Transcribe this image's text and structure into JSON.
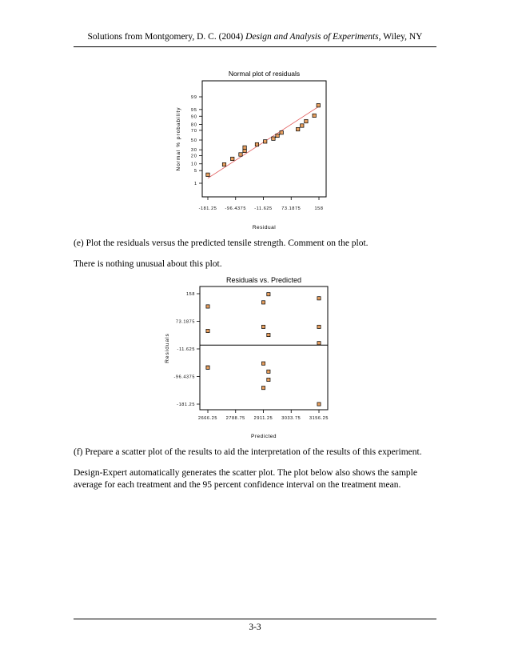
{
  "header": {
    "prefix": "Solutions from Montgomery, D. C. (2004) ",
    "book_title": "Design and Analysis of Experiments",
    "suffix": ", Wiley, NY"
  },
  "footer": {
    "page": "3-3"
  },
  "paragraphs": {
    "e_question": "(e)   Plot the residuals versus the predicted tensile strength.  Comment on the plot.",
    "e_answer": "There is nothing unusual about this plot.",
    "f_question": "(f)   Prepare a scatter plot of the results to aid the interpretation of the results of this experiment.",
    "f_answer": "Design-Expert automatically generates the scatter plot.  The plot below also shows the sample average for each treatment and the 95 percent confidence interval on the treatment mean."
  },
  "colors": {
    "marker_fill": "#e8a060",
    "fit_line": "#e05050"
  },
  "chart_data": [
    {
      "type": "scatter",
      "title": "Normal plot of residuals",
      "xlabel": "Residual",
      "ylabel": "Normal % probability",
      "x_ticks": [
        "-181.25",
        "-96.4375",
        "-11.625",
        "73.1875",
        "158"
      ],
      "x_tick_values": [
        -181.25,
        -96.4375,
        -11.625,
        73.1875,
        158
      ],
      "xlim": [
        -181.25,
        158
      ],
      "y_ticks": [
        "1",
        "5",
        "10",
        "20",
        "30",
        "50",
        "70",
        "80",
        "90",
        "95",
        "99"
      ],
      "y_tick_values": [
        1,
        5,
        10,
        20,
        30,
        50,
        70,
        80,
        90,
        95,
        99
      ],
      "ylim": [
        1,
        99
      ],
      "y_scale": "normal-probability",
      "fit_line": {
        "x": [
          -181.25,
          158
        ],
        "y": [
          2.0,
          96.5
        ]
      },
      "points": [
        {
          "x": -181.25,
          "y": 3.1
        },
        {
          "x": -131.25,
          "y": 9.4
        },
        {
          "x": -106.25,
          "y": 15.6
        },
        {
          "x": -81.25,
          "y": 21.9
        },
        {
          "x": -68.75,
          "y": 28.1
        },
        {
          "x": -68.75,
          "y": 34.4
        },
        {
          "x": -31.25,
          "y": 40.6
        },
        {
          "x": -6.25,
          "y": 46.9
        },
        {
          "x": 18.75,
          "y": 53.1
        },
        {
          "x": 31.25,
          "y": 59.4
        },
        {
          "x": 43.75,
          "y": 65.6
        },
        {
          "x": 93.75,
          "y": 71.9
        },
        {
          "x": 106.25,
          "y": 78.1
        },
        {
          "x": 118.75,
          "y": 84.4
        },
        {
          "x": 143.75,
          "y": 90.6
        },
        {
          "x": 156.25,
          "y": 96.9
        }
      ]
    },
    {
      "type": "scatter",
      "title": "Residuals vs. Predicted",
      "xlabel": "Predicted",
      "ylabel": "Residuals",
      "x_ticks": [
        "2666.25",
        "2788.75",
        "2911.25",
        "3033.75",
        "3156.25"
      ],
      "x_tick_values": [
        2666.25,
        2788.75,
        2911.25,
        3033.75,
        3156.25
      ],
      "xlim": [
        2666.25,
        3156.25
      ],
      "y_ticks": [
        "158",
        "73.1875",
        "-11.625",
        "-96.4375",
        "-181.25"
      ],
      "y_tick_values": [
        158,
        73.1875,
        -11.625,
        -96.4375,
        -181.25
      ],
      "ylim": [
        -181.25,
        158
      ],
      "zero_line": 0,
      "points": [
        {
          "x": 2666.25,
          "y": 118.75
        },
        {
          "x": 2666.25,
          "y": 43.75
        },
        {
          "x": 2666.25,
          "y": -68.75
        },
        {
          "x": 2666.25,
          "y": -68.75
        },
        {
          "x": 2933.75,
          "y": 156.25
        },
        {
          "x": 2933.75,
          "y": 31.25
        },
        {
          "x": 2933.75,
          "y": -81.25
        },
        {
          "x": 2933.75,
          "y": -106.25
        },
        {
          "x": 2911.25,
          "y": 131.25
        },
        {
          "x": 2911.25,
          "y": 56.25
        },
        {
          "x": 2911.25,
          "y": -56.25
        },
        {
          "x": 2911.25,
          "y": -131.25
        },
        {
          "x": 3156.25,
          "y": 143.75
        },
        {
          "x": 3156.25,
          "y": 56.25
        },
        {
          "x": 3156.25,
          "y": 6.25
        },
        {
          "x": 3156.25,
          "y": -181.25
        }
      ]
    }
  ]
}
